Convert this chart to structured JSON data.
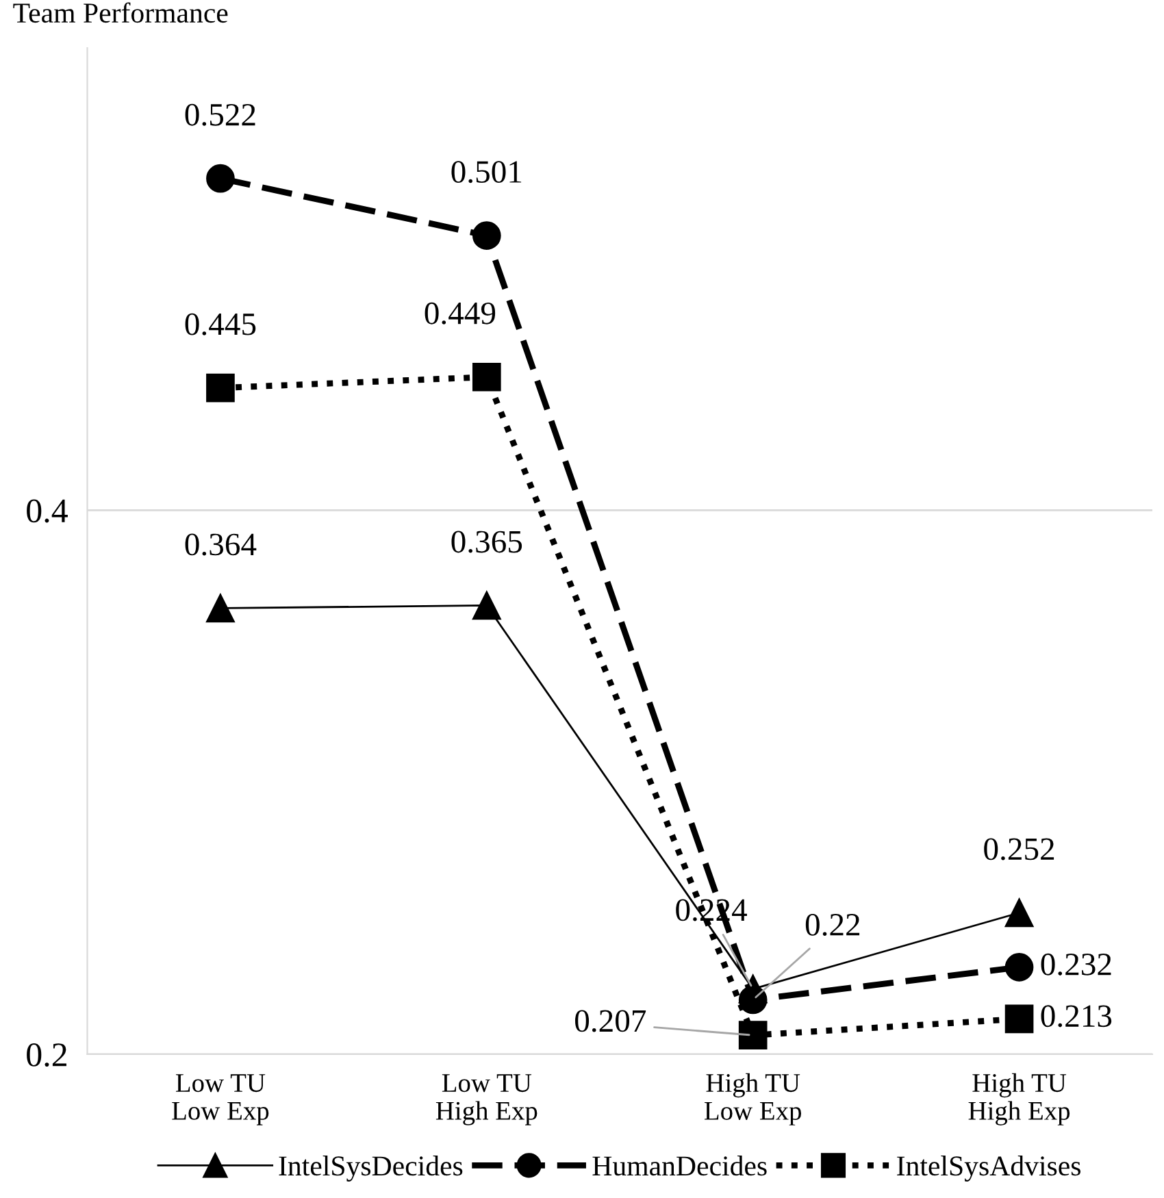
{
  "chart_data": {
    "type": "line",
    "ylabel": "Team Performance",
    "categories": [
      "Low TU\nLow Exp",
      "Low TU\nHigh Exp",
      "High TU\nLow Exp",
      "High TU\nHigh Exp"
    ],
    "series": [
      {
        "name": "IntelSysDecides",
        "color": "#000000",
        "values": [
          0.364,
          0.365,
          0.224,
          0.252
        ],
        "marker": "triangle",
        "line_style": "solid"
      },
      {
        "name": "HumanDecides",
        "color": "#000000",
        "values": [
          0.522,
          0.501,
          0.22,
          0.232
        ],
        "marker": "circle",
        "line_style": "dashed"
      },
      {
        "name": "IntelSysAdvises",
        "color": "#000000",
        "values": [
          0.445,
          0.449,
          0.207,
          0.213
        ],
        "marker": "square",
        "line_style": "dotted"
      }
    ],
    "ylim": [
      0.2,
      0.57
    ],
    "yticks": [
      0.2,
      0.4
    ],
    "grid": "y",
    "legend": "bottom",
    "data_labels": true
  }
}
